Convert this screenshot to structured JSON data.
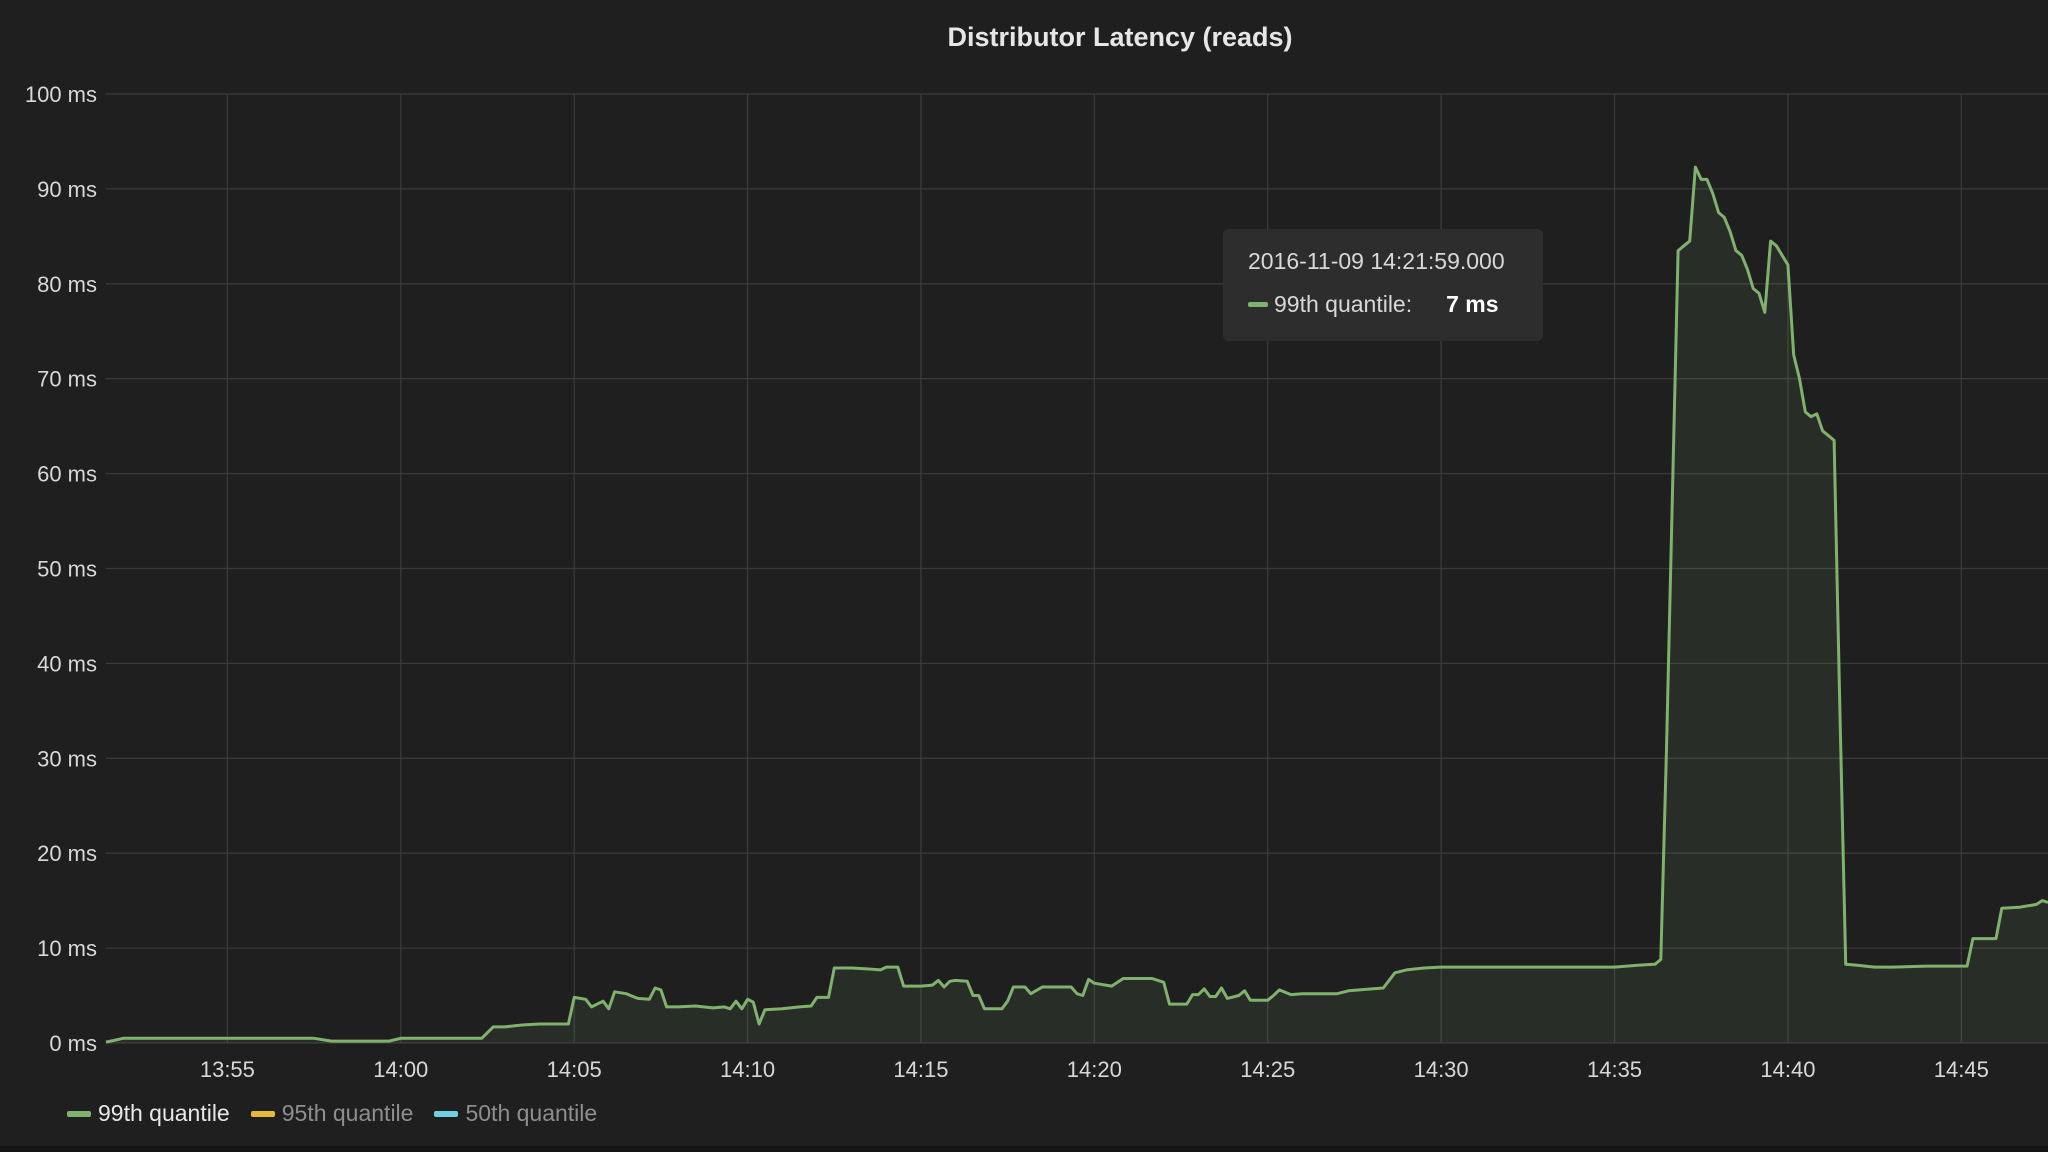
{
  "panel": {
    "title": "Distributor Latency (reads)"
  },
  "chart_data": {
    "type": "area",
    "title": "Distributor Latency (reads)",
    "xlabel": "",
    "ylabel": "",
    "unit": "ms",
    "ylim": [
      0,
      100
    ],
    "xlim": [
      "13:51:30",
      "14:47:30"
    ],
    "yticks": [
      "0 ms",
      "10 ms",
      "20 ms",
      "30 ms",
      "40 ms",
      "50 ms",
      "60 ms",
      "70 ms",
      "80 ms",
      "90 ms",
      "100 ms"
    ],
    "xticks": [
      "13:55",
      "14:00",
      "14:05",
      "14:10",
      "14:15",
      "14:20",
      "14:25",
      "14:30",
      "14:35",
      "14:40",
      "14:45"
    ],
    "grid": true,
    "legend_position": "bottom-left",
    "series": [
      {
        "name": "99th quantile",
        "color": "#7eb26d",
        "visible": true,
        "points": [
          [
            "13:51:30",
            0.1
          ],
          [
            "13:52:00",
            0.5
          ],
          [
            "13:54:00",
            0.5
          ],
          [
            "13:56:00",
            0.5
          ],
          [
            "13:57:30",
            0.5
          ],
          [
            "13:58:00",
            0.2
          ],
          [
            "13:59:00",
            0.2
          ],
          [
            "13:59:40",
            0.2
          ],
          [
            "14:00:00",
            0.5
          ],
          [
            "14:01:00",
            0.5
          ],
          [
            "14:02:00",
            0.5
          ],
          [
            "14:02:20",
            0.5
          ],
          [
            "14:02:40",
            1.7
          ],
          [
            "14:03:00",
            1.7
          ],
          [
            "14:03:30",
            1.9
          ],
          [
            "14:04:00",
            2.0
          ],
          [
            "14:04:50",
            2.0
          ],
          [
            "14:05:00",
            4.8
          ],
          [
            "14:05:20",
            4.6
          ],
          [
            "14:05:30",
            3.8
          ],
          [
            "14:05:50",
            4.4
          ],
          [
            "14:06:00",
            3.6
          ],
          [
            "14:06:10",
            5.4
          ],
          [
            "14:06:30",
            5.2
          ],
          [
            "14:06:50",
            4.7
          ],
          [
            "14:07:10",
            4.6
          ],
          [
            "14:07:20",
            5.8
          ],
          [
            "14:07:30",
            5.6
          ],
          [
            "14:07:40",
            3.8
          ],
          [
            "14:08:00",
            3.8
          ],
          [
            "14:08:30",
            3.9
          ],
          [
            "14:09:00",
            3.7
          ],
          [
            "14:09:20",
            3.8
          ],
          [
            "14:09:30",
            3.6
          ],
          [
            "14:09:40",
            4.4
          ],
          [
            "14:09:50",
            3.6
          ],
          [
            "14:10:00",
            4.6
          ],
          [
            "14:10:10",
            4.3
          ],
          [
            "14:10:20",
            2.0
          ],
          [
            "14:10:30",
            3.5
          ],
          [
            "14:11:00",
            3.6
          ],
          [
            "14:11:30",
            3.8
          ],
          [
            "14:11:50",
            3.9
          ],
          [
            "14:12:00",
            4.8
          ],
          [
            "14:12:20",
            4.8
          ],
          [
            "14:12:30",
            7.9
          ],
          [
            "14:13:00",
            7.9
          ],
          [
            "14:13:30",
            7.8
          ],
          [
            "14:13:50",
            7.7
          ],
          [
            "14:14:00",
            8.0
          ],
          [
            "14:14:20",
            8.0
          ],
          [
            "14:14:30",
            6.0
          ],
          [
            "14:15:00",
            6.0
          ],
          [
            "14:15:20",
            6.1
          ],
          [
            "14:15:30",
            6.6
          ],
          [
            "14:15:40",
            5.9
          ],
          [
            "14:15:50",
            6.5
          ],
          [
            "14:16:00",
            6.6
          ],
          [
            "14:16:20",
            6.5
          ],
          [
            "14:16:30",
            5.0
          ],
          [
            "14:16:40",
            5.0
          ],
          [
            "14:16:50",
            3.6
          ],
          [
            "14:17:20",
            3.6
          ],
          [
            "14:17:30",
            4.4
          ],
          [
            "14:17:40",
            5.9
          ],
          [
            "14:18:00",
            5.9
          ],
          [
            "14:18:10",
            5.2
          ],
          [
            "14:18:30",
            5.9
          ],
          [
            "14:19:00",
            5.9
          ],
          [
            "14:19:20",
            5.9
          ],
          [
            "14:19:30",
            5.2
          ],
          [
            "14:19:40",
            5.0
          ],
          [
            "14:19:50",
            6.7
          ],
          [
            "14:20:00",
            6.3
          ],
          [
            "14:20:30",
            6.0
          ],
          [
            "14:20:50",
            6.8
          ],
          [
            "14:21:20",
            6.8
          ],
          [
            "14:21:40",
            6.8
          ],
          [
            "14:22:00",
            6.4
          ],
          [
            "14:22:10",
            4.1
          ],
          [
            "14:22:40",
            4.1
          ],
          [
            "14:22:50",
            5.1
          ],
          [
            "14:23:00",
            5.1
          ],
          [
            "14:23:10",
            5.7
          ],
          [
            "14:23:20",
            4.9
          ],
          [
            "14:23:30",
            4.9
          ],
          [
            "14:23:40",
            5.8
          ],
          [
            "14:23:50",
            4.7
          ],
          [
            "14:24:10",
            5.0
          ],
          [
            "14:24:20",
            5.5
          ],
          [
            "14:24:30",
            4.5
          ],
          [
            "14:25:00",
            4.5
          ],
          [
            "14:25:10",
            5.0
          ],
          [
            "14:25:20",
            5.6
          ],
          [
            "14:25:40",
            5.1
          ],
          [
            "14:26:00",
            5.2
          ],
          [
            "14:26:30",
            5.2
          ],
          [
            "14:27:00",
            5.2
          ],
          [
            "14:27:20",
            5.5
          ],
          [
            "14:28:00",
            5.7
          ],
          [
            "14:28:20",
            5.8
          ],
          [
            "14:28:40",
            7.4
          ],
          [
            "14:29:00",
            7.7
          ],
          [
            "14:29:30",
            7.9
          ],
          [
            "14:30:00",
            8.0
          ],
          [
            "14:31:00",
            8.0
          ],
          [
            "14:32:00",
            8.0
          ],
          [
            "14:33:00",
            8.0
          ],
          [
            "14:34:00",
            8.0
          ],
          [
            "14:35:00",
            8.0
          ],
          [
            "14:35:40",
            8.2
          ],
          [
            "14:36:10",
            8.3
          ],
          [
            "14:36:20",
            8.8
          ],
          [
            "14:36:30",
            31.0
          ],
          [
            "14:36:50",
            83.5
          ],
          [
            "14:37:00",
            84.0
          ],
          [
            "14:37:10",
            84.5
          ],
          [
            "14:37:20",
            92.3
          ],
          [
            "14:37:30",
            91.0
          ],
          [
            "14:37:40",
            91.0
          ],
          [
            "14:37:50",
            89.5
          ],
          [
            "14:38:00",
            87.5
          ],
          [
            "14:38:10",
            87.0
          ],
          [
            "14:38:20",
            85.5
          ],
          [
            "14:38:30",
            83.5
          ],
          [
            "14:38:40",
            83.0
          ],
          [
            "14:38:50",
            81.5
          ],
          [
            "14:39:00",
            79.5
          ],
          [
            "14:39:10",
            79.0
          ],
          [
            "14:39:20",
            77.0
          ],
          [
            "14:39:30",
            84.5
          ],
          [
            "14:39:40",
            84.0
          ],
          [
            "14:39:50",
            83.0
          ],
          [
            "14:40:00",
            82.0
          ],
          [
            "14:40:10",
            72.5
          ],
          [
            "14:40:20",
            70.0
          ],
          [
            "14:40:30",
            66.5
          ],
          [
            "14:40:40",
            66.0
          ],
          [
            "14:40:50",
            66.3
          ],
          [
            "14:41:00",
            64.5
          ],
          [
            "14:41:10",
            64.0
          ],
          [
            "14:41:20",
            63.5
          ],
          [
            "14:41:30",
            35.0
          ],
          [
            "14:41:40",
            8.3
          ],
          [
            "14:42:00",
            8.2
          ],
          [
            "14:42:30",
            8.0
          ],
          [
            "14:43:00",
            8.0
          ],
          [
            "14:44:00",
            8.1
          ],
          [
            "14:45:00",
            8.1
          ],
          [
            "14:45:10",
            8.1
          ],
          [
            "14:45:20",
            11.0
          ],
          [
            "14:45:40",
            11.0
          ],
          [
            "14:46:00",
            11.0
          ],
          [
            "14:46:10",
            14.2
          ],
          [
            "14:46:40",
            14.3
          ],
          [
            "14:47:00",
            14.5
          ],
          [
            "14:47:10",
            14.6
          ],
          [
            "14:47:20",
            15.0
          ],
          [
            "14:47:30",
            14.8
          ]
        ]
      },
      {
        "name": "95th quantile",
        "color": "#eab839",
        "visible": false,
        "points": []
      },
      {
        "name": "50th quantile",
        "color": "#6ed0e0",
        "visible": false,
        "points": []
      }
    ]
  },
  "tooltip": {
    "time": "2016-11-09 14:21:59.000",
    "series": "99th quantile:",
    "value": "7 ms",
    "color": "#7eb26d"
  },
  "legend": {
    "items": [
      {
        "label": "99th quantile",
        "color": "#7eb26d",
        "active": true
      },
      {
        "label": "95th quantile",
        "color": "#eab839",
        "active": false
      },
      {
        "label": "50th quantile",
        "color": "#6ed0e0",
        "active": false
      }
    ]
  }
}
